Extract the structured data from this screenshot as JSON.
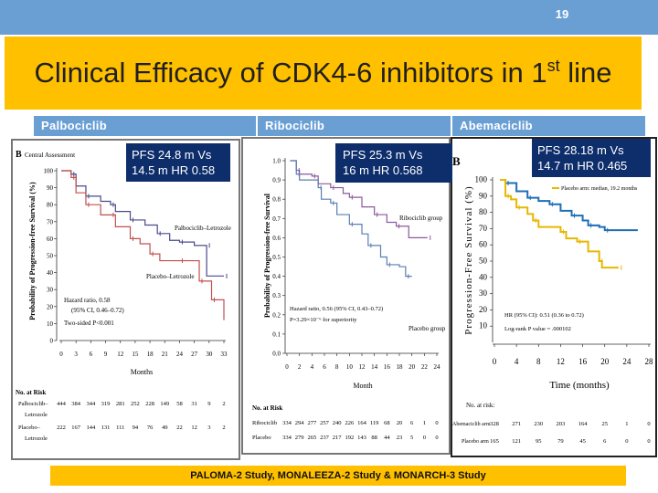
{
  "slide": {
    "page_number": "19",
    "title_main": "Clinical Efficacy of CDK4-6 inhibitors in 1",
    "title_sup": "st",
    "title_end": " line",
    "footer": "PALOMA-2 Study, MONALEEZA-2 Study & MONARCH-3 Study",
    "colors": {
      "band": "#6a9fd4",
      "title_bg": "#ffc000",
      "pfs_box": "#0d2d6b"
    }
  },
  "panels": [
    {
      "drug": "Palbociclib",
      "pfs_line1": "PFS 24.8 m Vs",
      "pfs_line2": "14.5 m HR 0.58",
      "panel_letter": "B",
      "panel_subtitle": "Central Assessment",
      "hr_line1": "Hazard ratio, 0.58",
      "hr_line2": "(95% CI, 0.46–0.72)",
      "hr_line3": "Two-sided P<0.001",
      "at_risk_title": "No. at Risk"
    },
    {
      "drug": "Ribociclib",
      "pfs_line1": "PFS 25.3 m Vs",
      "pfs_line2": "16 m HR 0.568",
      "hr_line1": "Hazard ratio, 0.56 (95% CI, 0.43–0.72)",
      "hr_line2": "P=3.29×10⁻⁶ for superiority",
      "at_risk_title": "No. at Risk"
    },
    {
      "drug": "Abemaciclib",
      "pfs_line1": "PFS 28.18 m Vs",
      "pfs_line2": "14.7 m HR 0.465",
      "panel_letter": "B",
      "legend_placebo": "Placebo arm: median, 19.2 months",
      "hr_line1": "HR (95% CI): 0.51 (0.36 to 0.72)",
      "hr_line2": "Log-rank P value = .000102",
      "at_risk_title": "No. at risk:"
    }
  ],
  "chart_data": [
    {
      "type": "line",
      "step": true,
      "xlabel": "Months",
      "ylabel": "Probability of Progression-free Survival (%)",
      "xlim": [
        0,
        33
      ],
      "ylim": [
        0,
        100
      ],
      "x_ticks": [
        "0",
        "3",
        "6",
        "9",
        "12",
        "15",
        "18",
        "21",
        "24",
        "27",
        "30",
        "33"
      ],
      "y_ticks": [
        "0",
        "10",
        "20",
        "30",
        "40",
        "50",
        "60",
        "70",
        "80",
        "90",
        "100"
      ],
      "series": [
        {
          "name": "Palbociclib–Letrozole",
          "color": "#4a4a8c",
          "points": [
            [
              0,
              100
            ],
            [
              2,
              98
            ],
            [
              3,
              91
            ],
            [
              5,
              85
            ],
            [
              8,
              82
            ],
            [
              10,
              80
            ],
            [
              11,
              76
            ],
            [
              14,
              71
            ],
            [
              17,
              68
            ],
            [
              19.5,
              63
            ],
            [
              22,
              59
            ],
            [
              24,
              58
            ],
            [
              27,
              56
            ],
            [
              29.5,
              56
            ],
            [
              29.5,
              38
            ],
            [
              33,
              38
            ]
          ]
        },
        {
          "name": "Placebo–Letrozole",
          "color": "#c0504d",
          "points": [
            [
              0,
              100
            ],
            [
              2,
              96
            ],
            [
              3,
              87
            ],
            [
              5,
              80
            ],
            [
              8,
              74
            ],
            [
              10,
              74
            ],
            [
              11,
              67
            ],
            [
              14,
              60
            ],
            [
              16,
              57
            ],
            [
              18,
              51
            ],
            [
              20,
              47
            ],
            [
              24,
              47
            ],
            [
              28,
              47
            ],
            [
              28,
              35
            ],
            [
              30.5,
              35
            ],
            [
              30.5,
              24
            ],
            [
              33,
              12
            ]
          ]
        }
      ],
      "at_risk": [
        {
          "label1": "Palbociclib–",
          "label2": "Letrozole",
          "values": [
            "444",
            "384",
            "344",
            "319",
            "281",
            "252",
            "228",
            "149",
            "58",
            "31",
            "9",
            "2"
          ]
        },
        {
          "label1": "Placebo–",
          "label2": "Letrozole",
          "values": [
            "222",
            "167",
            "144",
            "131",
            "111",
            "94",
            "76",
            "49",
            "22",
            "12",
            "3",
            "2"
          ]
        }
      ]
    },
    {
      "type": "line",
      "step": true,
      "xlabel": "Month",
      "ylabel": "Probability of Progression-free Survival",
      "xlim": [
        0,
        24
      ],
      "ylim": [
        0,
        1
      ],
      "x_ticks": [
        "0",
        "2",
        "4",
        "6",
        "8",
        "10",
        "12",
        "14",
        "16",
        "18",
        "20",
        "22",
        "24"
      ],
      "y_ticks": [
        "0.0",
        "0.1",
        "0.2",
        "0.3",
        "0.4",
        "0.5",
        "0.6",
        "0.7",
        "0.8",
        "0.9",
        "1.0"
      ],
      "series": [
        {
          "name": "Ribociclib group",
          "color": "#8a5a9a",
          "points": [
            [
              0.5,
              1
            ],
            [
              1.5,
              0.95
            ],
            [
              2,
              0.93
            ],
            [
              4,
              0.92
            ],
            [
              5,
              0.88
            ],
            [
              7,
              0.86
            ],
            [
              9,
              0.83
            ],
            [
              10,
              0.81
            ],
            [
              12,
              0.76
            ],
            [
              14,
              0.72
            ],
            [
              16,
              0.68
            ],
            [
              17.5,
              0.66
            ],
            [
              19.5,
              0.6
            ],
            [
              22.5,
              0.6
            ]
          ]
        },
        {
          "name": "Placebo group",
          "color": "#5a7fb0",
          "points": [
            [
              0.5,
              1
            ],
            [
              1.5,
              0.93
            ],
            [
              2,
              0.9
            ],
            [
              5,
              0.86
            ],
            [
              5.5,
              0.8
            ],
            [
              7,
              0.78
            ],
            [
              8,
              0.72
            ],
            [
              10,
              0.67
            ],
            [
              12,
              0.62
            ],
            [
              13,
              0.56
            ],
            [
              15,
              0.5
            ],
            [
              16,
              0.46
            ],
            [
              18,
              0.45
            ],
            [
              19,
              0.4
            ],
            [
              20,
              0.4
            ]
          ]
        }
      ],
      "at_risk": [
        {
          "label1": "Ribociclib",
          "values": [
            "334",
            "294",
            "277",
            "257",
            "240",
            "226",
            "164",
            "119",
            "68",
            "20",
            "6",
            "1",
            "0"
          ]
        },
        {
          "label1": "Placebo",
          "values": [
            "334",
            "279",
            "265",
            "237",
            "217",
            "192",
            "143",
            "88",
            "44",
            "23",
            "5",
            "0",
            "0"
          ]
        }
      ]
    },
    {
      "type": "line",
      "step": true,
      "xlabel": "Time (months)",
      "ylabel": "Progression-Free Survival (%)",
      "xlim": [
        0,
        28
      ],
      "ylim": [
        0,
        100
      ],
      "x_ticks": [
        "0",
        "4",
        "8",
        "12",
        "16",
        "20",
        "24",
        "28"
      ],
      "y_ticks": [
        "10",
        "20",
        "30",
        "40",
        "50",
        "60",
        "70",
        "80",
        "90",
        "100"
      ],
      "series": [
        {
          "name": "Abemaciclib arm",
          "color": "#1f6fb5",
          "points": [
            [
              1,
              100
            ],
            [
              2,
              98
            ],
            [
              4,
              93
            ],
            [
              6,
              89
            ],
            [
              8,
              87
            ],
            [
              10,
              85
            ],
            [
              12,
              81
            ],
            [
              14,
              78
            ],
            [
              16,
              75
            ],
            [
              17,
              72
            ],
            [
              19,
              71
            ],
            [
              20,
              69
            ],
            [
              26,
              69
            ]
          ]
        },
        {
          "name": "Placebo arm",
          "color": "#e6b800",
          "points": [
            [
              1,
              100
            ],
            [
              2,
              90
            ],
            [
              3,
              88
            ],
            [
              4,
              83
            ],
            [
              6,
              79
            ],
            [
              7,
              75
            ],
            [
              8,
              71
            ],
            [
              12,
              68
            ],
            [
              13,
              64
            ],
            [
              15,
              62
            ],
            [
              17,
              56
            ],
            [
              19,
              50
            ],
            [
              19.5,
              46
            ],
            [
              22.5,
              46
            ]
          ]
        }
      ],
      "at_risk": [
        {
          "label1": "Abemaciclib arm",
          "values": [
            "328",
            "271",
            "230",
            "203",
            "164",
            "25",
            "1",
            "0"
          ]
        },
        {
          "label1": "Placebo arm",
          "values": [
            "165",
            "121",
            "95",
            "79",
            "45",
            "6",
            "0",
            "0"
          ]
        }
      ]
    }
  ]
}
